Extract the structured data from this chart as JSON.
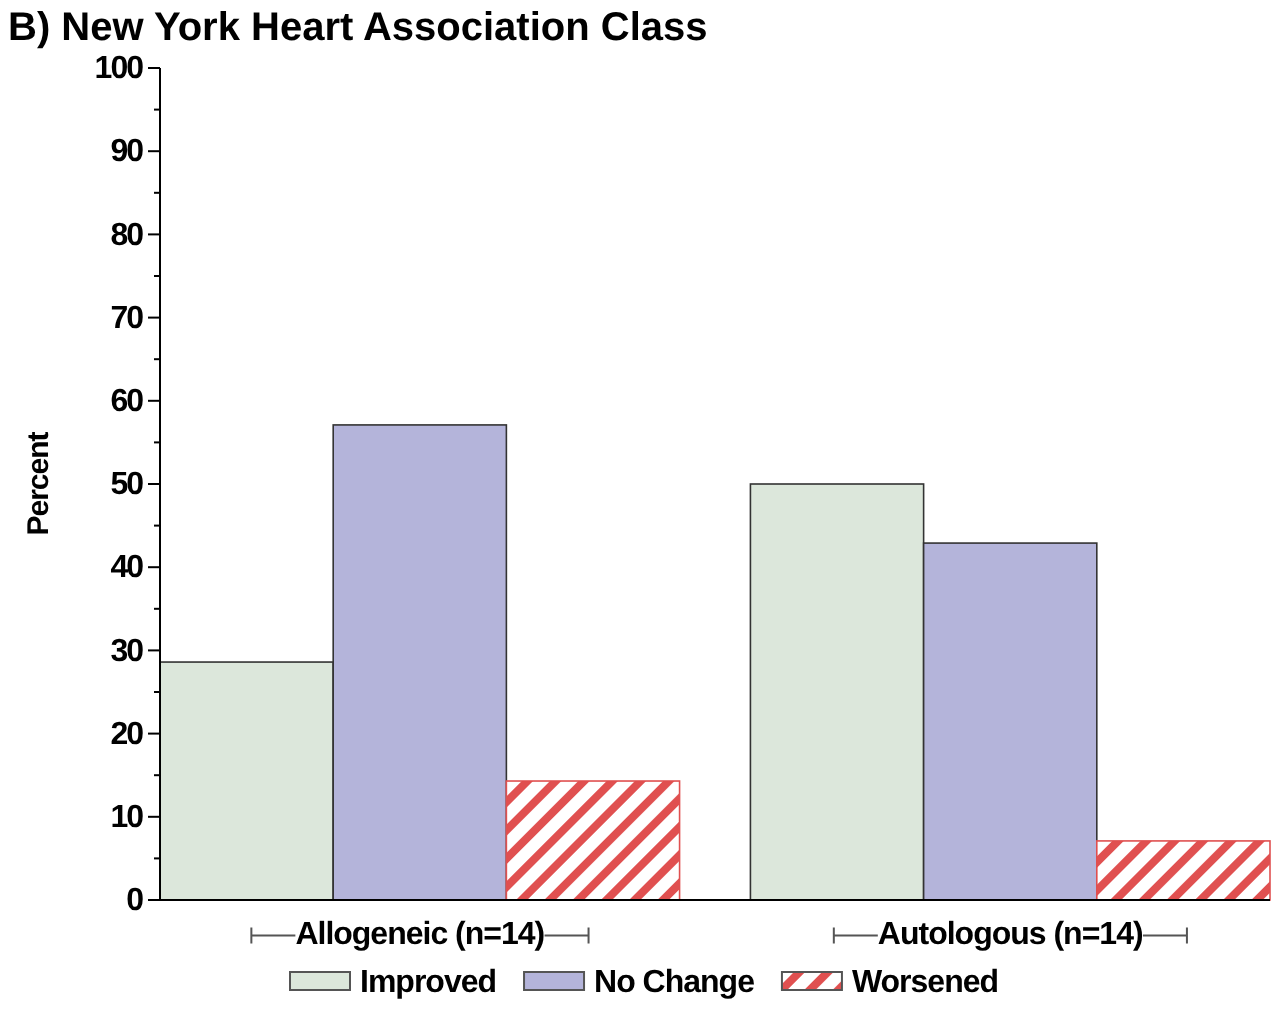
{
  "chart_data": {
    "type": "bar",
    "title": "B) New York Heart Association Class",
    "ylabel": "Percent",
    "categories": [
      "Allogeneic (n=14)",
      "Autologous (n=14)"
    ],
    "series": [
      {
        "name": "Improved",
        "color": "#dce7db",
        "values": [
          28.6,
          50
        ]
      },
      {
        "name": "No Change",
        "color": "#b4b4da",
        "values": [
          57.1,
          42.9
        ]
      },
      {
        "name": "Worsened",
        "color": "#e05050",
        "values": [
          14.3,
          7.1
        ]
      }
    ],
    "ylim": [
      0,
      100
    ],
    "yticks": [
      0,
      {
        "value": 5,
        "label": null
      },
      10,
      {
        "value": 15,
        "label": null
      },
      20,
      {
        "value": 25,
        "label": null
      },
      30,
      {
        "value": 35,
        "label": null
      },
      40,
      {
        "value": 45,
        "label": null
      },
      50,
      {
        "value": 55,
        "label": null
      },
      60,
      {
        "value": 65,
        "label": null
      },
      70,
      {
        "value": 75,
        "label": null
      },
      80,
      {
        "value": 85,
        "label": null
      },
      90,
      {
        "value": 95,
        "label": null
      },
      100
    ],
    "legend": "bottom",
    "grid": false
  }
}
